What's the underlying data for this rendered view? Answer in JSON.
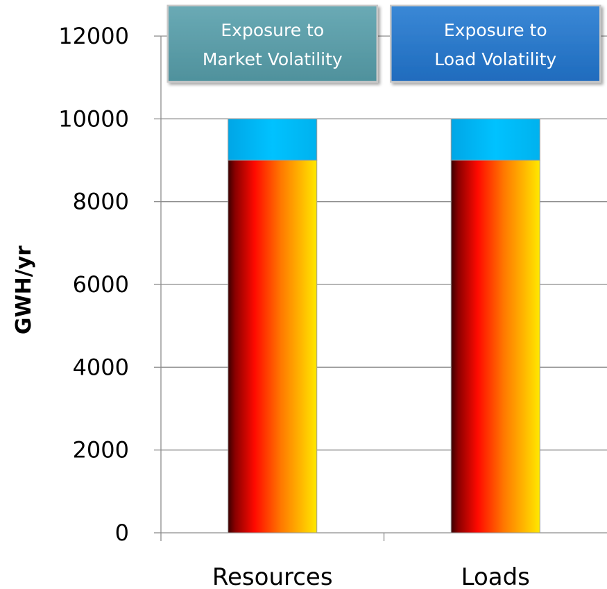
{
  "chart_data": {
    "type": "bar",
    "stacked": true,
    "categories": [
      "Resources",
      "Loads"
    ],
    "series": [
      {
        "values": [
          9000,
          9000
        ],
        "color": "#ff1a00"
      },
      {
        "values": [
          1000,
          1000
        ],
        "color": "#00b8f0"
      }
    ],
    "ylabel": "GWH/yr",
    "xlabel": "",
    "ylim": [
      0,
      12000
    ],
    "yticks": [
      0,
      2000,
      4000,
      6000,
      8000,
      10000,
      12000
    ],
    "grid": true,
    "legend": "none",
    "annotations": [
      {
        "lines": [
          "Exposure to",
          "Market Volatility"
        ],
        "color": "#5b9ea9"
      },
      {
        "lines": [
          "Exposure to",
          "Load Volatility"
        ],
        "color": "#2878c8"
      }
    ]
  }
}
